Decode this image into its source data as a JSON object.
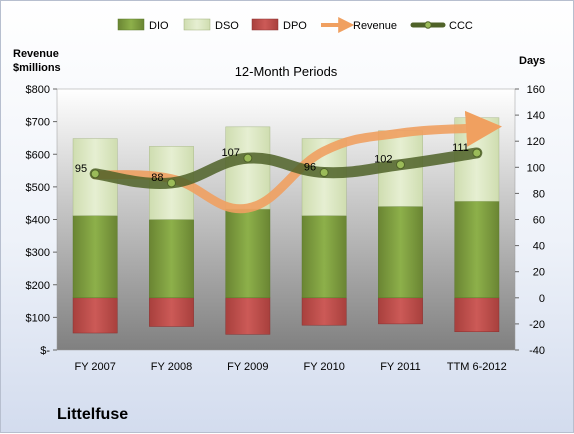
{
  "chart_data": {
    "type": "bar",
    "title": "12-Month Periods",
    "company": "Littelfuse",
    "left_axis_label": "Revenue\n$millions",
    "right_axis_label": "Days",
    "left_ylim": [
      0,
      800
    ],
    "left_ticks": [
      "$-",
      "$100",
      "$200",
      "$300",
      "$400",
      "$500",
      "$600",
      "$700",
      "$800"
    ],
    "right_ylim": [
      -40,
      160
    ],
    "right_ticks": [
      "-40",
      "-20",
      "0",
      "20",
      "40",
      "60",
      "80",
      "100",
      "120",
      "140",
      "160"
    ],
    "categories": [
      "FY 2007",
      "FY 2008",
      "FY 2009",
      "FY 2010",
      "FY 2011",
      "TTM 6-2012"
    ],
    "legend": [
      "DIO",
      "DSO",
      "DPO",
      "Revenue",
      "CCC"
    ],
    "series": [
      {
        "name": "DIO",
        "axis": "right",
        "values": [
          63,
          60,
          68,
          63,
          70,
          74
        ]
      },
      {
        "name": "DSO",
        "axis": "right",
        "values": [
          59,
          56,
          63,
          59,
          58,
          64
        ]
      },
      {
        "name": "DPO",
        "axis": "right",
        "values": [
          -27,
          -22,
          -28,
          -21,
          -20,
          -26
        ]
      },
      {
        "name": "Revenue",
        "axis": "left",
        "values": [
          537,
          525,
          435,
          610,
          665,
          680
        ]
      },
      {
        "name": "CCC",
        "axis": "right",
        "values": [
          95,
          88,
          107,
          96,
          102,
          111
        ]
      }
    ],
    "colors": {
      "DIO": "#77933c",
      "DSO": "#d7e4bd",
      "DPO": "#c0504d",
      "Revenue": "#f0a060",
      "CCC": "#4f6228"
    },
    "legend_position": "top",
    "grid": false
  }
}
